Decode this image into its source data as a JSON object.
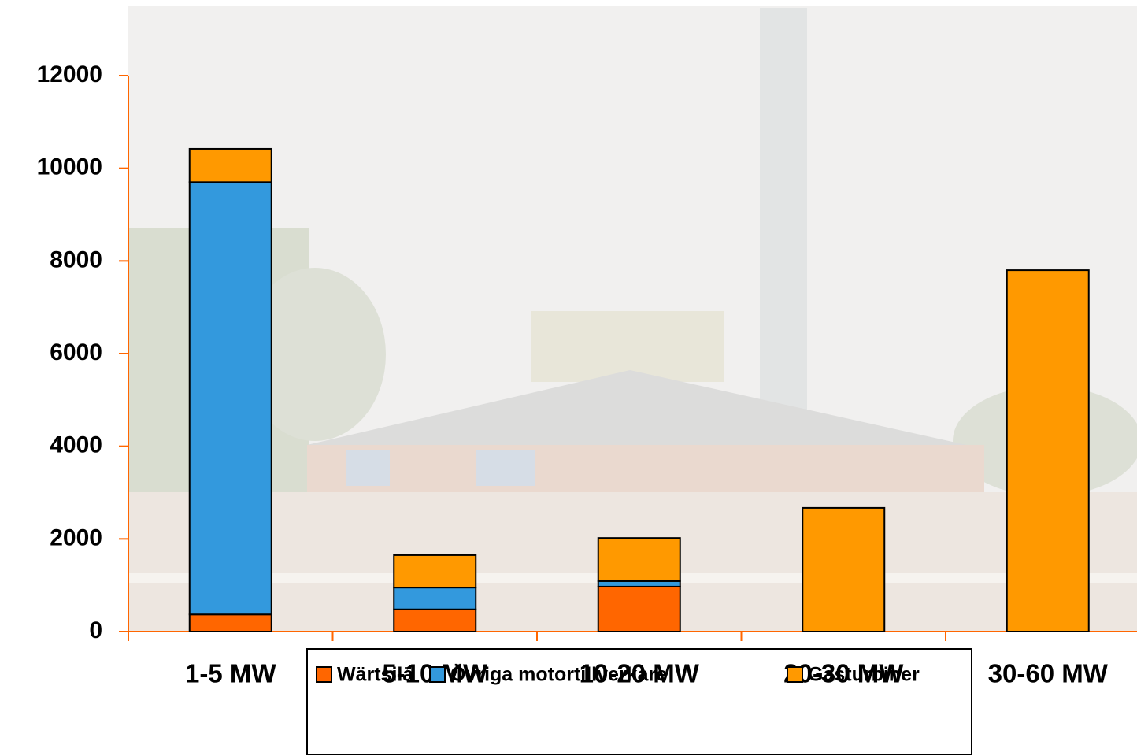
{
  "chart_data": {
    "type": "stacked_bar",
    "categories": [
      "1-5 MW",
      "5-10 MW",
      "10-20 MW",
      "20-30 MW",
      "30-60 MW"
    ],
    "series": [
      {
        "name": "Wärtsilä",
        "color": "#ff6600",
        "values": [
          370,
          480,
          970,
          0,
          0
        ]
      },
      {
        "name": "Övriga motortillverkare",
        "color": "#3399dd",
        "values": [
          9330,
          470,
          120,
          0,
          0
        ]
      },
      {
        "name": "Gasturbiner",
        "color": "#ff9900",
        "values": [
          720,
          700,
          930,
          2670,
          7800
        ]
      }
    ],
    "ylim": [
      0,
      12000
    ],
    "yticks": [
      0,
      2000,
      4000,
      6000,
      8000,
      10000,
      12000
    ],
    "grid": false,
    "legend": "bottom"
  }
}
